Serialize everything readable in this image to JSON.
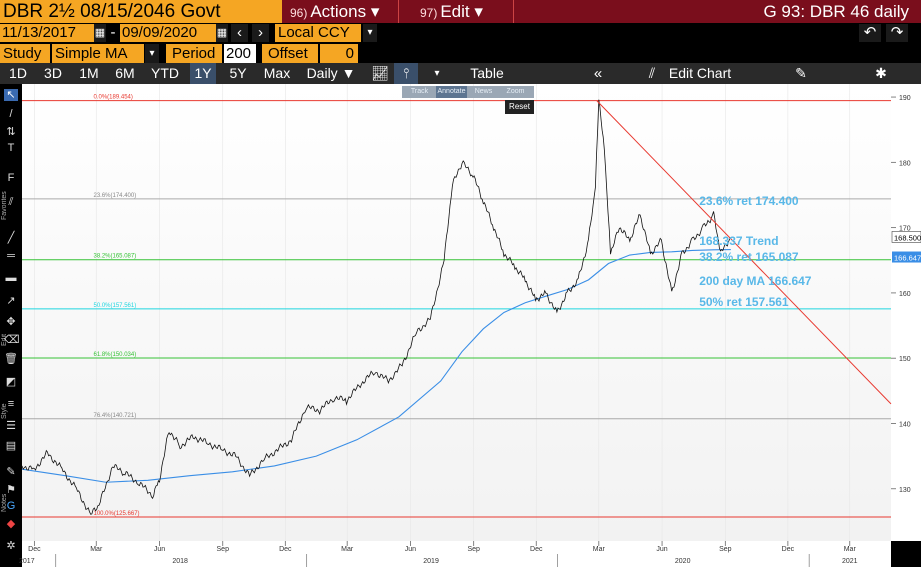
{
  "header": {
    "security": "DBR 2½ 08/15/2046 Govt",
    "actions_num": "96)",
    "actions_label": "Actions ▾",
    "edit_num": "97)",
    "edit_label": "Edit ▾",
    "chart_title": "G 93: DBR 46 daily"
  },
  "dates": {
    "start": "11/13/2017",
    "end": "09/09/2020",
    "currency": "Local CCY"
  },
  "study": {
    "label": "Study",
    "value": "Simple MA",
    "period_label": "Period",
    "period_value": "200",
    "offset_label": "Offset",
    "offset_value": "0"
  },
  "toolbar": {
    "ranges": [
      "1D",
      "3D",
      "1M",
      "6M",
      "YTD",
      "1Y",
      "5Y",
      "Max"
    ],
    "active_range": "1Y",
    "frequency": "Daily ▼",
    "table_label": "Table",
    "edit_chart_label": "Edit Chart",
    "mini_toolbar": [
      "Track",
      "Annotate",
      "News",
      "Zoom"
    ],
    "reset_label": "Reset"
  },
  "left_tools": {
    "favorites": "Favorites",
    "edit": "Edit",
    "style": "Style",
    "notes": "Notes"
  },
  "colors": {
    "price": "#111111",
    "ma": "#3a8ee6",
    "trend": "#e8382f",
    "fib_red": "#e8382f",
    "fib_grey": "#aaaaaa",
    "fib_green": "#36c236",
    "fib_cyan": "#1fd6e0",
    "annotation_text": "#59b8e8",
    "header_bg": "#7a0e1c",
    "orange": "#f5a623"
  },
  "chart_data": {
    "type": "line",
    "title": "G 93: DBR 46 daily",
    "ylim": [
      122,
      192
    ],
    "xlim": [
      "2017-11-13",
      "2021-04-30"
    ],
    "yticks": [
      130,
      140,
      150,
      160,
      170,
      180,
      190
    ],
    "xticks_month": [
      "Dec",
      "Mar",
      "Jun",
      "Sep",
      "Dec",
      "Mar",
      "Jun",
      "Sep",
      "Dec",
      "Mar",
      "Jun",
      "Sep",
      "Dec",
      "Mar"
    ],
    "xticks_month_dates": [
      "2017-12-01",
      "2018-03-01",
      "2018-06-01",
      "2018-09-01",
      "2018-12-01",
      "2019-03-01",
      "2019-06-01",
      "2019-09-01",
      "2019-12-01",
      "2020-03-01",
      "2020-06-01",
      "2020-09-01",
      "2020-12-01",
      "2021-03-01"
    ],
    "xticks_year": [
      "2017",
      "2018",
      "2019",
      "2020",
      "2021"
    ],
    "xticks_year_dates": [
      "2017-11-20",
      "2018-07-01",
      "2019-07-01",
      "2020-07-01",
      "2021-03-01"
    ],
    "series": [
      {
        "name": "",
        "style": "price",
        "x": [
          "2017-11-13",
          "2017-12-01",
          "2017-12-20",
          "2018-01-10",
          "2018-01-31",
          "2018-02-21",
          "2018-03-05",
          "2018-03-25",
          "2018-04-10",
          "2018-05-01",
          "2018-05-22",
          "2018-06-01",
          "2018-06-15",
          "2018-07-01",
          "2018-07-20",
          "2018-08-10",
          "2018-08-31",
          "2018-09-20",
          "2018-10-10",
          "2018-10-31",
          "2018-11-20",
          "2018-12-10",
          "2018-12-31",
          "2019-01-20",
          "2019-02-10",
          "2019-02-28",
          "2019-03-20",
          "2019-04-10",
          "2019-04-30",
          "2019-05-20",
          "2019-06-10",
          "2019-06-30",
          "2019-07-20",
          "2019-08-01",
          "2019-08-15",
          "2019-08-31",
          "2019-09-15",
          "2019-09-30",
          "2019-10-15",
          "2019-10-31",
          "2019-11-15",
          "2019-11-30",
          "2019-12-15",
          "2019-12-31",
          "2020-01-15",
          "2020-01-31",
          "2020-02-15",
          "2020-02-25",
          "2020-03-01",
          "2020-03-09",
          "2020-03-18",
          "2020-03-31",
          "2020-04-15",
          "2020-04-30",
          "2020-05-15",
          "2020-05-31",
          "2020-06-15",
          "2020-06-30",
          "2020-07-15",
          "2020-07-31",
          "2020-08-15",
          "2020-08-25",
          "2020-09-09"
        ],
        "y": [
          133.5,
          133.0,
          135.5,
          133.0,
          130.0,
          126.0,
          127.5,
          133.5,
          132.5,
          131.0,
          129.0,
          131.5,
          139.0,
          136.5,
          138.0,
          137.0,
          136.0,
          135.0,
          132.0,
          134.5,
          136.0,
          137.5,
          142.5,
          142.0,
          144.0,
          143.5,
          146.0,
          148.0,
          146.5,
          149.0,
          154.0,
          156.0,
          165.0,
          176.5,
          180.0,
          178.0,
          174.0,
          170.0,
          166.0,
          164.0,
          162.0,
          159.0,
          160.0,
          157.0,
          160.0,
          162.0,
          168.0,
          176.0,
          189.5,
          182.0,
          166.0,
          170.0,
          168.0,
          172.0,
          166.0,
          168.0,
          160.0,
          166.0,
          168.0,
          170.0,
          172.0,
          166.0,
          168.5
        ]
      },
      {
        "name": "200 day MA",
        "style": "ma",
        "x": [
          "2017-11-13",
          "2018-01-15",
          "2018-03-15",
          "2018-05-15",
          "2018-07-15",
          "2018-09-15",
          "2018-11-15",
          "2019-01-15",
          "2019-03-15",
          "2019-05-15",
          "2019-07-15",
          "2019-08-15",
          "2019-09-15",
          "2019-10-15",
          "2019-11-15",
          "2019-12-15",
          "2020-01-15",
          "2020-02-15",
          "2020-03-15",
          "2020-04-15",
          "2020-05-15",
          "2020-06-15",
          "2020-07-15",
          "2020-08-15",
          "2020-09-09"
        ],
        "y": [
          133.0,
          132.0,
          131.0,
          131.3,
          132.0,
          132.6,
          133.5,
          135.0,
          137.5,
          141.0,
          146.5,
          151.0,
          154.5,
          157.0,
          158.5,
          159.5,
          160.5,
          162.0,
          164.5,
          165.8,
          166.2,
          166.3,
          166.5,
          166.6,
          166.647
        ]
      }
    ],
    "trendline": {
      "x": [
        "2020-02-27",
        "2021-04-30"
      ],
      "y": [
        189.454,
        143.0
      ]
    },
    "fib_levels": [
      {
        "label": "0.0%(189.454)",
        "value": 189.454,
        "style": "red"
      },
      {
        "label": "23.6%(174.400)",
        "value": 174.4,
        "style": "grey"
      },
      {
        "label": "38.2%(165.087)",
        "value": 165.087,
        "style": "green"
      },
      {
        "label": "50.0%(157.561)",
        "value": 157.561,
        "style": "cyan"
      },
      {
        "label": "61.8%(150.034)",
        "value": 150.034,
        "style": "green"
      },
      {
        "label": "76.4%(140.721)",
        "value": 140.721,
        "style": "grey"
      },
      {
        "label": "100.0%(125.667)",
        "value": 125.667,
        "style": "red"
      }
    ],
    "annotations": [
      {
        "text": "23.6% ret 174.400",
        "value": 174.4,
        "x": "2020-07-25"
      },
      {
        "text": "168.337 Trend",
        "value": 168.337,
        "x": "2020-07-25"
      },
      {
        "text": "38.2% ret 165.087",
        "value": 165.087,
        "x": "2020-07-25"
      },
      {
        "text": "200 day MA 166.647",
        "value": 166.647,
        "x": "2020-07-25"
      },
      {
        "text": "50% ret 157.561",
        "value": 157.561,
        "x": "2020-07-25"
      }
    ],
    "last_price_tag": {
      "text": "168.500",
      "value": 168.5
    },
    "ma_tag": {
      "text": "166.647",
      "value": 166.647
    }
  }
}
